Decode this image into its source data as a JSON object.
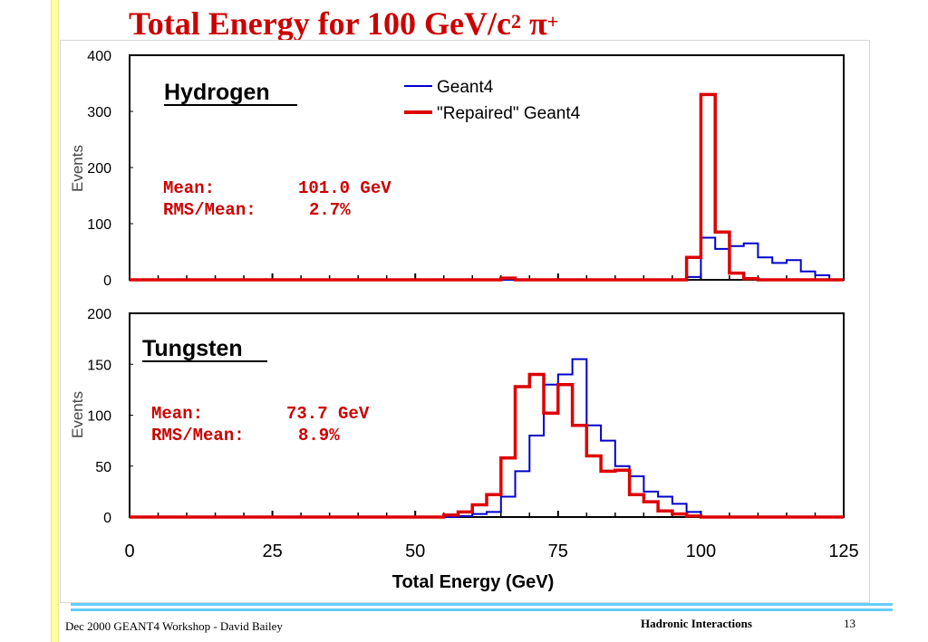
{
  "slide": {
    "title_main": "Total Energy for 100 GeV/c",
    "title_sup1": "2",
    "title_pi": " π",
    "title_sup2": "+",
    "footer_left": "Dec 2000 GEANT4  Workshop  -  David Bailey",
    "footer_center": "Hadronic Interactions",
    "page_number": "13"
  },
  "colors": {
    "geant4": "#0000cc",
    "repaired": "#dd0000",
    "title": "#cc0000",
    "accent_bar": "#ffff99",
    "rule": "#66ccff"
  },
  "chart_data": [
    {
      "type": "line",
      "title": "Hydrogen",
      "ylabel": "Events",
      "xlim": [
        0,
        125
      ],
      "ylim": [
        0,
        400
      ],
      "yticks": [
        "0",
        "100",
        "200",
        "300",
        "400"
      ],
      "bin_width": 2.5,
      "legend": {
        "position": "top-right",
        "entries": [
          "Geant4",
          "\"Repaired\" Geant4"
        ]
      },
      "stats": {
        "mean_label": "Mean:",
        "mean_value": "101.0 GeV",
        "rms_label": "RMS/Mean:",
        "rms_value": "2.7%"
      },
      "series": [
        {
          "name": "Geant4",
          "color": "#0000cc",
          "x": [
            97.5,
            100,
            102.5,
            105,
            107.5,
            110,
            112.5,
            115,
            117.5,
            120
          ],
          "values": [
            5,
            75,
            55,
            60,
            65,
            40,
            30,
            35,
            15,
            8
          ]
        },
        {
          "name": "\"Repaired\" Geant4",
          "color": "#dd0000",
          "x": [
            65,
            97.5,
            100,
            102.5,
            105,
            107.5
          ],
          "values": [
            3,
            40,
            330,
            85,
            12,
            2
          ]
        }
      ]
    },
    {
      "type": "line",
      "title": "Tungsten",
      "ylabel": "Events",
      "xlabel": "Total Energy (GeV)",
      "xlim": [
        0,
        125
      ],
      "ylim": [
        0,
        200
      ],
      "yticks": [
        "0",
        "50",
        "100",
        "150",
        "200"
      ],
      "xticks": [
        "0",
        "25",
        "50",
        "75",
        "100",
        "125"
      ],
      "bin_width": 2.5,
      "stats": {
        "mean_label": "Mean:",
        "mean_value": "73.7 GeV",
        "rms_label": "RMS/Mean:",
        "rms_value": "8.9%"
      },
      "series": [
        {
          "name": "Geant4",
          "color": "#0000cc",
          "x": [
            57.5,
            60,
            62.5,
            65,
            67.5,
            70,
            72.5,
            75,
            77.5,
            80,
            82.5,
            85,
            87.5,
            90,
            92.5,
            95,
            97.5
          ],
          "values": [
            1,
            3,
            5,
            20,
            45,
            80,
            130,
            140,
            155,
            90,
            75,
            50,
            40,
            25,
            20,
            13,
            5
          ]
        },
        {
          "name": "\"Repaired\" Geant4",
          "color": "#dd0000",
          "x": [
            55,
            57.5,
            60,
            62.5,
            65,
            67.5,
            70,
            72.5,
            75,
            77.5,
            80,
            82.5,
            85,
            87.5,
            90,
            92.5,
            95,
            97.5
          ],
          "values": [
            2,
            5,
            12,
            22,
            58,
            128,
            140,
            102,
            130,
            90,
            60,
            45,
            46,
            22,
            15,
            6,
            3,
            1
          ]
        }
      ]
    }
  ]
}
